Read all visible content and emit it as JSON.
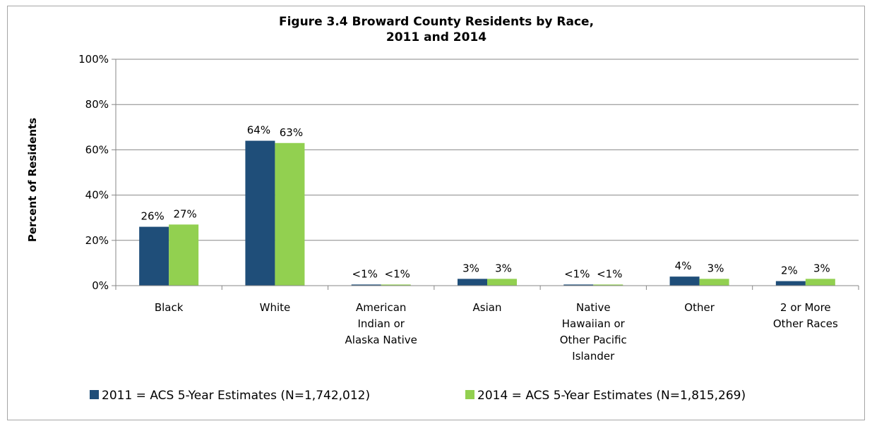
{
  "chart_data": {
    "type": "bar",
    "title": [
      "Figure 3.4 Broward County Residents by Race,",
      "2011 and 2014"
    ],
    "ylabel": "Percent of Residents",
    "xlabel": "",
    "ylim": [
      0,
      100
    ],
    "yticks": [
      0,
      20,
      40,
      60,
      80,
      100
    ],
    "ytick_labels": [
      "0%",
      "20%",
      "40%",
      "60%",
      "80%",
      "100%"
    ],
    "grid": true,
    "legend_position": "bottom",
    "categories": [
      [
        "Black"
      ],
      [
        "White"
      ],
      [
        "American",
        "Indian or",
        "Alaska Native"
      ],
      [
        "Asian"
      ],
      [
        "Native",
        "Hawaiian or",
        "Other Pacific",
        "Islander"
      ],
      [
        "Other"
      ],
      [
        "2 or More",
        "Other Races"
      ]
    ],
    "series": [
      {
        "name": "2011 = ACS 5-Year Estimates (N=1,742,012)",
        "color": "#1f4e79",
        "values": [
          26,
          64,
          0.5,
          3,
          0.5,
          4,
          2
        ],
        "labels": [
          "26%",
          "64%",
          "<1%",
          "3%",
          "<1%",
          "4%",
          "2%"
        ]
      },
      {
        "name": "2014 = ACS 5-Year Estimates (N=1,815,269)",
        "color": "#92d050",
        "values": [
          27,
          63,
          0.5,
          3,
          0.5,
          3,
          3
        ],
        "labels": [
          "27%",
          "63%",
          "<1%",
          "3%",
          "<1%",
          "3%",
          "3%"
        ]
      }
    ]
  },
  "colors": {
    "gridline": "#878787",
    "axis": "#878787"
  }
}
